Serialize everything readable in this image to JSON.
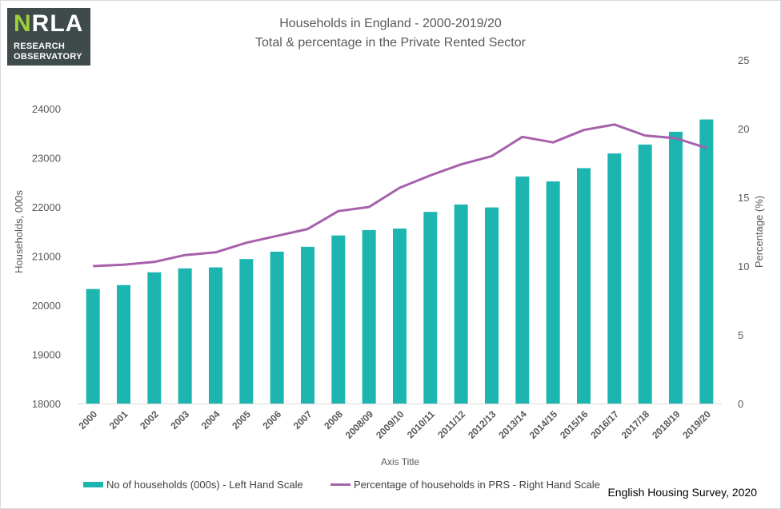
{
  "logo": {
    "mark_n": "N",
    "mark_rest": "RLA",
    "line1": "RESEARCH",
    "line2": "OBSERVATORY"
  },
  "title": {
    "line1": "Households in England - 2000-2019/20",
    "line2": "Total & percentage in the Private Rented Sector"
  },
  "source": "English Housing Survey, 2020",
  "legend": {
    "bars": "No of households (000s) - Left Hand Scale",
    "line": "Percentage of households in PRS - Right Hand Scale"
  },
  "colors": {
    "bars": "#1cb5b0",
    "line": "#a661ab",
    "text": "#595959"
  },
  "chart_data": {
    "type": "bar",
    "categories": [
      "2000",
      "2001",
      "2002",
      "2003",
      "2004",
      "2005",
      "2006",
      "2007",
      "2008",
      "2008/09",
      "2009/10",
      "2010/11",
      "2011/12",
      "2012/13",
      "2013/14",
      "2014/15",
      "2015/16",
      "2016/17",
      "2017/18",
      "2018/19",
      "2019/20"
    ],
    "series": [
      {
        "name": "No of households (000s) - Left Hand Scale",
        "type": "bar",
        "axis": "left",
        "values": [
          20330,
          20410,
          20670,
          20750,
          20770,
          20940,
          21090,
          21190,
          21420,
          21530,
          21560,
          21900,
          22050,
          21990,
          22620,
          22520,
          22790,
          23090,
          23270,
          23530,
          23780
        ]
      },
      {
        "name": "Percentage of households in PRS - Right Hand Scale",
        "type": "line",
        "axis": "right",
        "values": [
          10.0,
          10.1,
          10.3,
          10.8,
          11.0,
          11.7,
          12.2,
          12.7,
          14.0,
          14.3,
          15.7,
          16.6,
          17.4,
          18.0,
          19.4,
          19.0,
          19.9,
          20.3,
          19.5,
          19.3,
          18.6
        ]
      }
    ],
    "xlabel": "Axis Title",
    "ylabel": "Households, 000s",
    "y2label": "Percentage (%)",
    "ylim": [
      18000,
      24000
    ],
    "yticks": [
      "18000",
      "19000",
      "20000",
      "21000",
      "22000",
      "23000",
      "24000"
    ],
    "y2lim": [
      0,
      25
    ],
    "y2ticks": [
      "0",
      "5",
      "10",
      "15",
      "20",
      "25"
    ],
    "grid": false,
    "legend_position": "bottom"
  }
}
